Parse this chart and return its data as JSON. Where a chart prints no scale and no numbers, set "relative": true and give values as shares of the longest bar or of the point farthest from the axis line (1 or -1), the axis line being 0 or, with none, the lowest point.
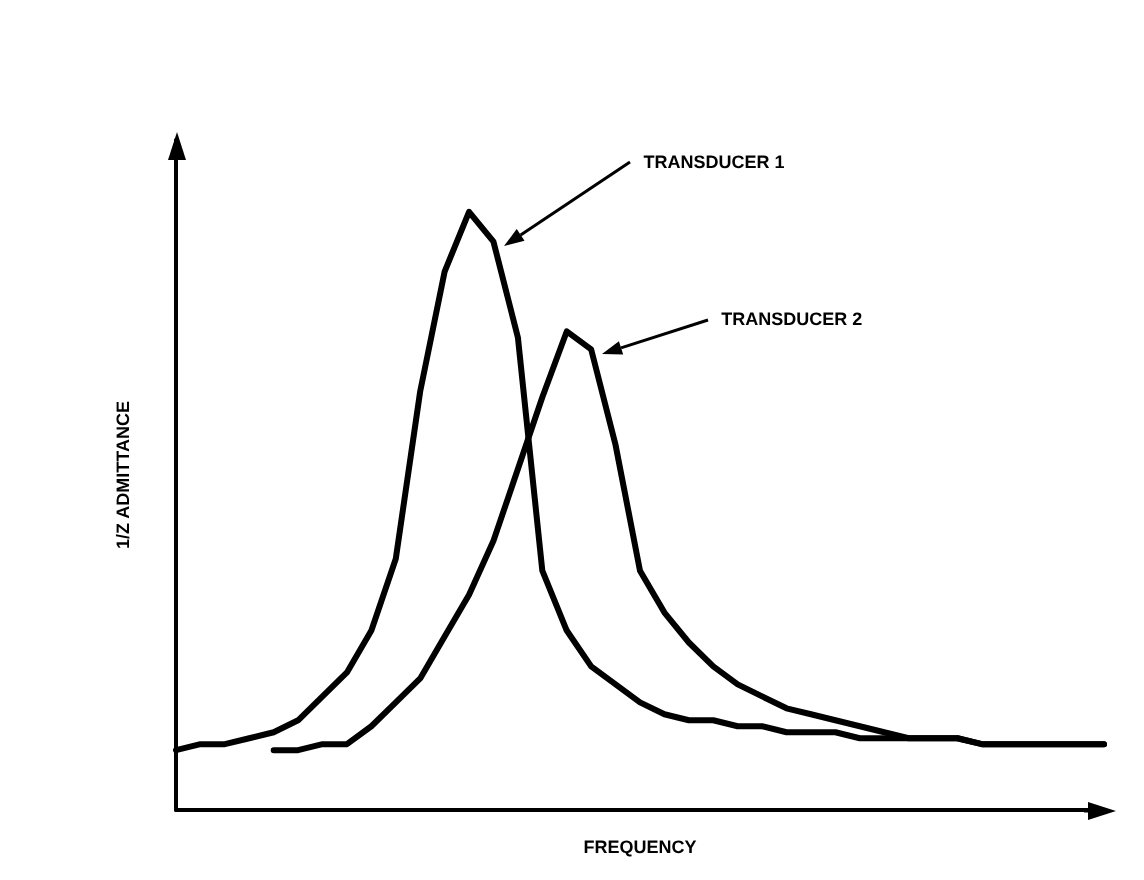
{
  "chart_data": {
    "type": "line",
    "relative": true,
    "xlabel": "FREQUENCY",
    "ylabel": "1/Z ADMITTANCE",
    "categories": [
      null,
      null,
      null,
      null,
      null,
      null,
      null,
      null,
      null,
      null,
      null,
      null,
      null,
      null,
      null,
      null,
      null,
      null,
      null,
      null,
      null,
      null,
      null,
      null,
      null,
      null,
      null,
      null,
      null,
      null,
      null,
      null,
      null,
      null,
      null,
      null,
      null,
      null,
      null
    ],
    "series": [
      {
        "name": "TRANSDUCER 1",
        "color": "#000000",
        "values": [
          0.1,
          0.11,
          0.11,
          0.12,
          0.13,
          0.15,
          0.19,
          0.23,
          0.3,
          0.42,
          0.7,
          0.9,
          1,
          0.95,
          0.79,
          0.4,
          0.3,
          0.24,
          0.21,
          0.18,
          0.16,
          0.15,
          0.15,
          0.14,
          0.14,
          0.13,
          0.13,
          0.13,
          0.12,
          0.12,
          0.12,
          0.12,
          0.12,
          0.11,
          0.11,
          0.11,
          0.11,
          0.11,
          0.11
        ]
      },
      {
        "name": "TRANSDUCER 2",
        "color": "#000000",
        "values": [
          null,
          null,
          null,
          null,
          0.1,
          0.1,
          0.11,
          0.11,
          0.14,
          0.18,
          0.22,
          0.29,
          0.36,
          0.45,
          0.57,
          0.69,
          0.8,
          0.77,
          0.61,
          0.4,
          0.33,
          0.28,
          0.24,
          0.21,
          0.19,
          0.17,
          0.16,
          0.15,
          0.14,
          0.13,
          0.12,
          0.12,
          0.12,
          0.11,
          0.11,
          0.11,
          0.11,
          0.11,
          0.11
        ]
      }
    ],
    "legend": false,
    "grid": false,
    "marker": "none",
    "line_style": "solid"
  }
}
